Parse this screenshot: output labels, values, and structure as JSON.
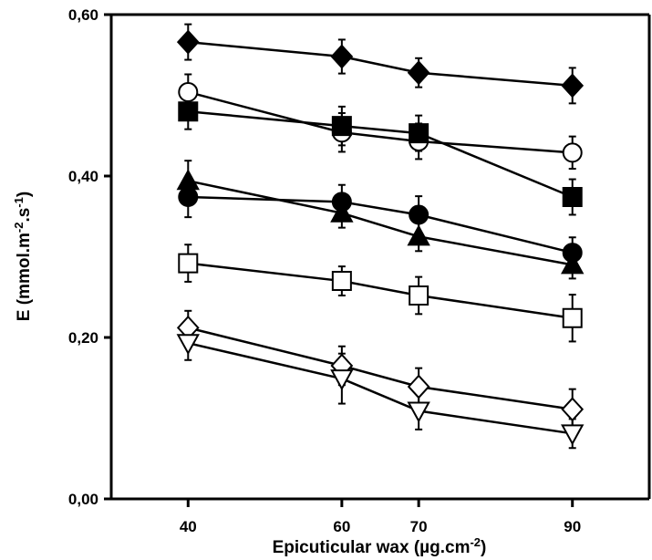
{
  "chart_data": {
    "type": "line",
    "x": [
      40,
      60,
      70,
      90
    ],
    "xticks": [
      "40",
      "60",
      "70",
      "90"
    ],
    "xlim": [
      30,
      100
    ],
    "ylim": [
      0,
      0.6
    ],
    "yticks": [
      "0,00",
      "0,20",
      "0,40",
      "0,60"
    ],
    "ylabel": "E (mmol.m-2.s-1)",
    "xlabel": "Epicuticular wax (µg.cm-2)",
    "grid": false,
    "legend": "none",
    "series": [
      {
        "marker": "diamond-filled",
        "values": [
          0.566,
          0.548,
          0.528,
          0.512
        ],
        "errors": [
          0.022,
          0.021,
          0.018,
          0.022
        ]
      },
      {
        "marker": "circle-open",
        "values": [
          0.504,
          0.454,
          0.443,
          0.429
        ],
        "errors": [
          0.022,
          0.024,
          0.022,
          0.02
        ]
      },
      {
        "marker": "square-filled",
        "values": [
          0.48,
          0.462,
          0.453,
          0.374
        ],
        "errors": [
          0.022,
          0.024,
          0.022,
          0.022
        ]
      },
      {
        "marker": "triangle-filled",
        "values": [
          0.394,
          0.354,
          0.325,
          0.29
        ],
        "errors": [
          0.025,
          0.018,
          0.018,
          0.017
        ]
      },
      {
        "marker": "circle-filled",
        "values": [
          0.374,
          0.368,
          0.352,
          0.305
        ],
        "errors": [
          0.025,
          0.021,
          0.023,
          0.019
        ]
      },
      {
        "marker": "square-open",
        "values": [
          0.292,
          0.27,
          0.252,
          0.224
        ],
        "errors": [
          0.023,
          0.018,
          0.023,
          0.029
        ]
      },
      {
        "marker": "diamond-open",
        "values": [
          0.212,
          0.165,
          0.139,
          0.111
        ],
        "errors": [
          0.021,
          0.024,
          0.023,
          0.025
        ]
      },
      {
        "marker": "triangle-open",
        "values": [
          0.193,
          0.149,
          0.109,
          0.081
        ],
        "errors": [
          0.021,
          0.031,
          0.023,
          0.018
        ]
      }
    ]
  }
}
